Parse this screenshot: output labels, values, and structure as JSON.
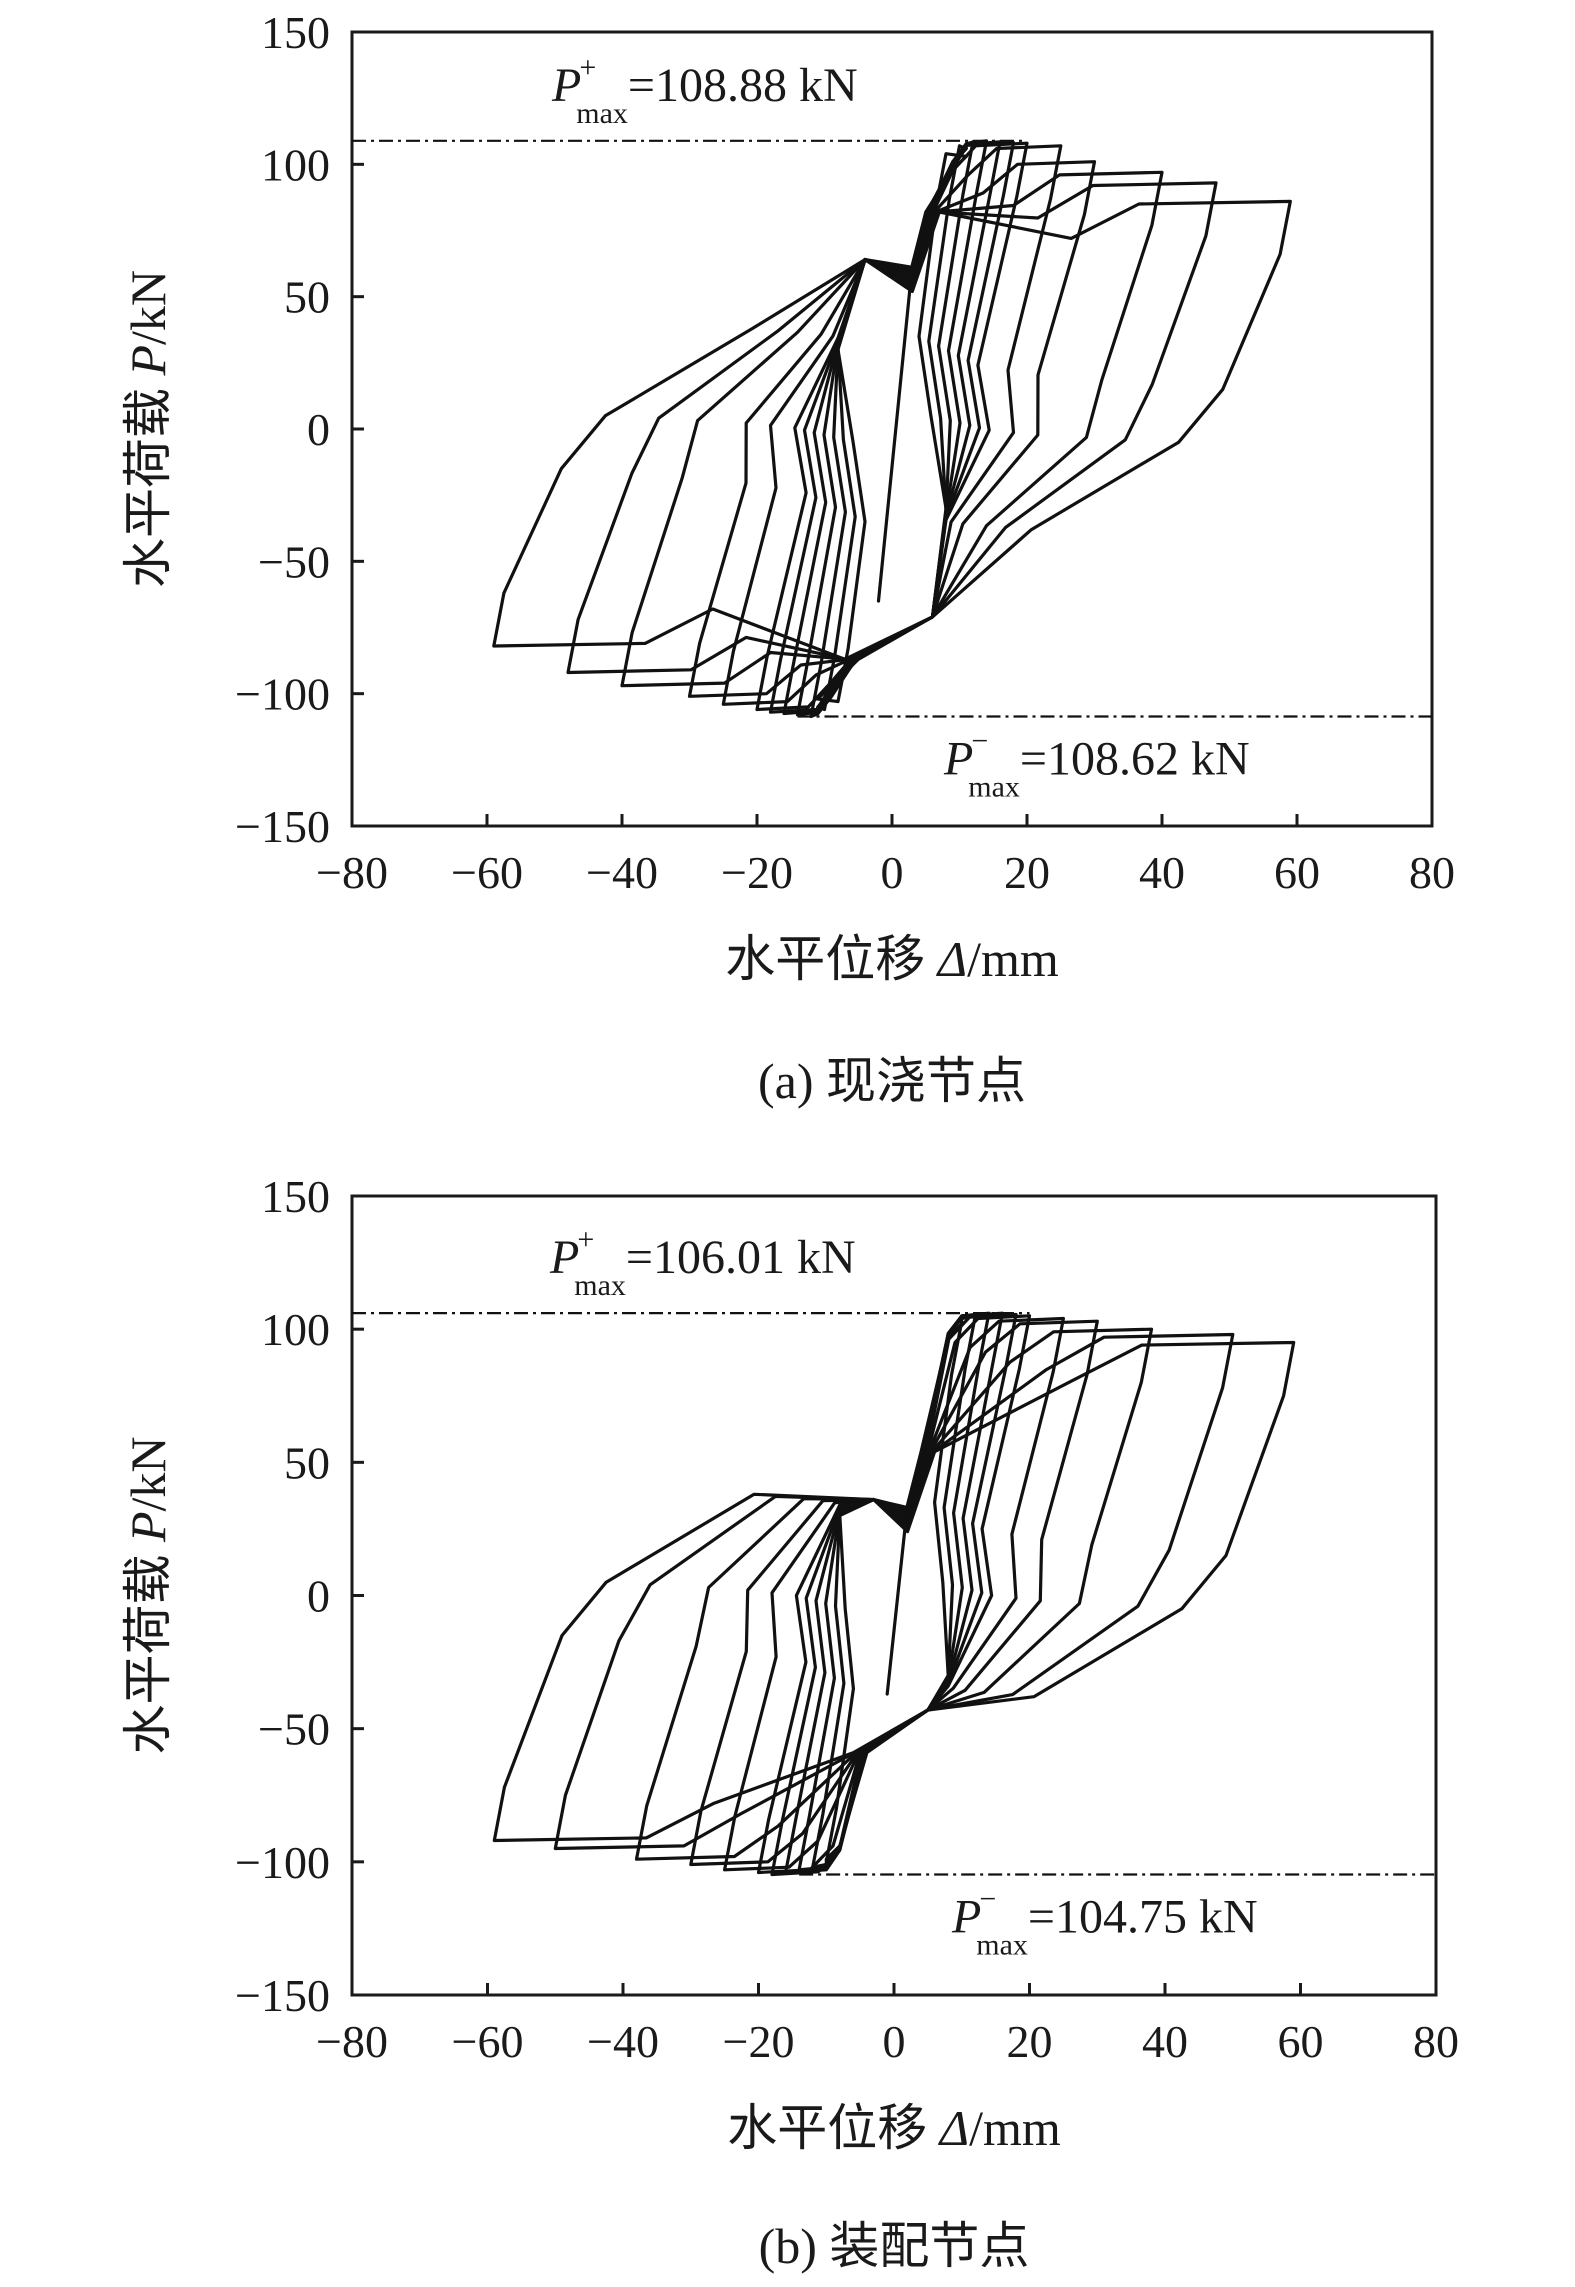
{
  "chart_data": [
    {
      "type": "line",
      "panel": "a",
      "caption": "(a) 现浇节点",
      "xlabel_text": "水平位移 ",
      "xlabel_symbol": "Δ",
      "xlabel_unit": "/mm",
      "ylabel_text": "水平荷载 ",
      "ylabel_symbol": "P",
      "ylabel_unit": "/kN",
      "xlim": [
        -80,
        80
      ],
      "ylim": [
        -150,
        150
      ],
      "xticks": [
        -80,
        -60,
        -40,
        -20,
        0,
        20,
        40,
        60,
        80
      ],
      "yticks": [
        -150,
        -100,
        -50,
        0,
        50,
        100,
        150
      ],
      "xtick_labels": [
        "−80",
        "−60",
        "−40",
        "−20",
        "0",
        "20",
        "40",
        "60",
        "80"
      ],
      "ytick_labels": [
        "−150",
        "−100",
        "−50",
        "0",
        "50",
        "100",
        "150"
      ],
      "pmax_pos": {
        "symbol": "P",
        "sub": "max",
        "sup": "+",
        "text": "=108.88 kN",
        "value": 108.88
      },
      "pmax_neg": {
        "symbol": "P",
        "sub": "max",
        "sup": "−",
        "text": "=108.62 kN",
        "value": -108.62
      },
      "series": [
        {
          "name": "hysteresis-loops",
          "amplitudes": [
            8,
            10,
            12,
            14,
            16,
            18,
            20,
            25,
            30,
            40,
            48,
            59
          ],
          "positive_peaks": [
            104,
            107,
            108.5,
            108.88,
            108.5,
            108.2,
            108,
            107,
            101,
            97,
            93,
            86
          ],
          "negative_peaks": [
            -103,
            -106,
            -108.62,
            -108,
            -107.5,
            -107,
            -106,
            -104,
            -101,
            -97,
            -92,
            -82
          ],
          "pinching_crossing": {
            "positive": [
              3,
              68
            ],
            "negative": [
              -3,
              -73
            ]
          }
        }
      ]
    },
    {
      "type": "line",
      "panel": "b",
      "caption": "(b) 装配节点",
      "xlabel_text": "水平位移 ",
      "xlabel_symbol": "Δ",
      "xlabel_unit": "/mm",
      "ylabel_text": "水平荷载 ",
      "ylabel_symbol": "P",
      "ylabel_unit": "/kN",
      "xlim": [
        -80,
        80
      ],
      "ylim": [
        -150,
        150
      ],
      "xticks": [
        -80,
        -60,
        -40,
        -20,
        0,
        20,
        40,
        60,
        80
      ],
      "yticks": [
        -150,
        -100,
        -50,
        0,
        50,
        100,
        150
      ],
      "xtick_labels": [
        "−80",
        "−60",
        "−40",
        "−20",
        "0",
        "20",
        "40",
        "60",
        "80"
      ],
      "ytick_labels": [
        "−150",
        "−100",
        "−50",
        "0",
        "50",
        "100",
        "150"
      ],
      "pmax_pos": {
        "symbol": "P",
        "sub": "max",
        "sup": "+",
        "text": "=106.01 kN",
        "value": 106.01
      },
      "pmax_neg": {
        "symbol": "P",
        "sub": "max",
        "sup": "−",
        "text": "=104.75 kN",
        "value": -104.75
      },
      "series": [
        {
          "name": "hysteresis-loops",
          "amplitudes": [
            10,
            12,
            14,
            16,
            18,
            20,
            25,
            30,
            38,
            50,
            59
          ],
          "positive_peaks": [
            103,
            105,
            106.01,
            106,
            105.5,
            105,
            104,
            103,
            100,
            98,
            95
          ],
          "negative_peaks": [
            -100,
            -102,
            -103,
            -104,
            -104.75,
            -104,
            -103,
            -101,
            -99,
            -95,
            -92
          ],
          "pinching_crossing": {
            "positive": [
              2,
              40
            ],
            "negative": [
              -2,
              -45
            ]
          }
        }
      ]
    }
  ]
}
